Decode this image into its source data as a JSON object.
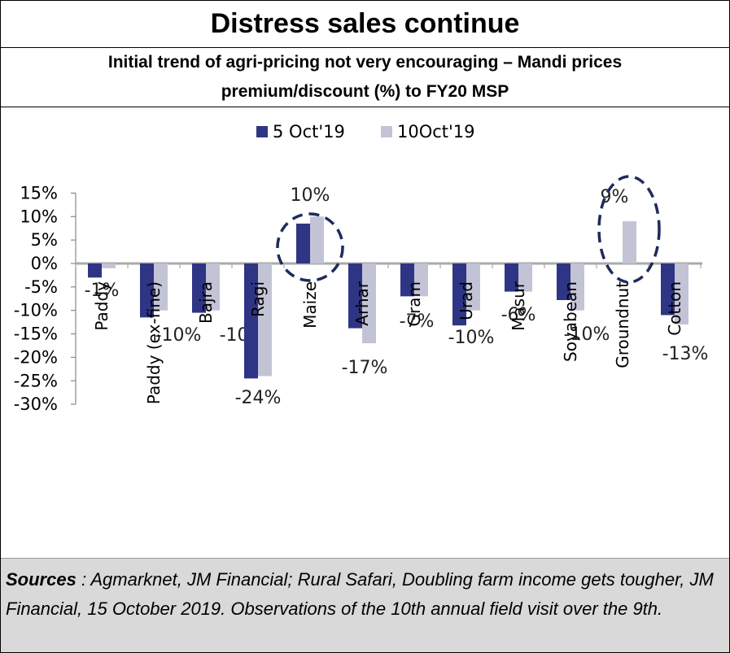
{
  "header": {
    "title": "Distress sales continue",
    "subtitle": "Initial trend of agri-pricing not very encouraging – Mandi prices premium/discount (%) to FY20 MSP"
  },
  "footer": {
    "sources_label": "Sources",
    "sources_text": " : Agmarknet, JM Financial; Rural Safari, Doubling farm income gets tougher, JM Financial, 15 October 2019. Observations of the 10th annual field visit over the 9th."
  },
  "colors": {
    "series1": "#2e3585",
    "series2": "#c3c3d6",
    "highlight": "#1f2a5c"
  },
  "chart_data": {
    "type": "bar",
    "categories": [
      "Paddy",
      "Paddy (ex-fine)",
      "Bajra",
      "Ragi",
      "Maize",
      "Arhar",
      "Gram",
      "Urad",
      "Masur",
      "Soyabean",
      "Groundnut",
      "Cotton"
    ],
    "series": [
      {
        "name": "5 Oct'19",
        "values": [
          -3,
          -11.5,
          -10.5,
          -24.5,
          8.5,
          -13.8,
          -7,
          -13.2,
          -6,
          -7.8,
          null,
          -11
        ]
      },
      {
        "name": "10Oct'19",
        "values": [
          -1,
          -10,
          -10,
          -24,
          10,
          -17,
          -7,
          -10,
          -6,
          -10,
          9,
          -13
        ]
      }
    ],
    "data_labels": [
      "-1%",
      "-10%",
      "-10%",
      "-24%",
      "10%",
      "-17%",
      "-7%",
      "-10%",
      "-6%",
      "-10%",
      "9%",
      "-13%"
    ],
    "highlighted_categories": [
      "Maize",
      "Groundnut"
    ],
    "yticks": [
      "15%",
      "10%",
      "5%",
      "0%",
      "-5%",
      "-10%",
      "-15%",
      "-20%",
      "-25%",
      "-30%"
    ],
    "ylim": [
      -30,
      15
    ],
    "legend_position": "top-center",
    "grid": false
  }
}
